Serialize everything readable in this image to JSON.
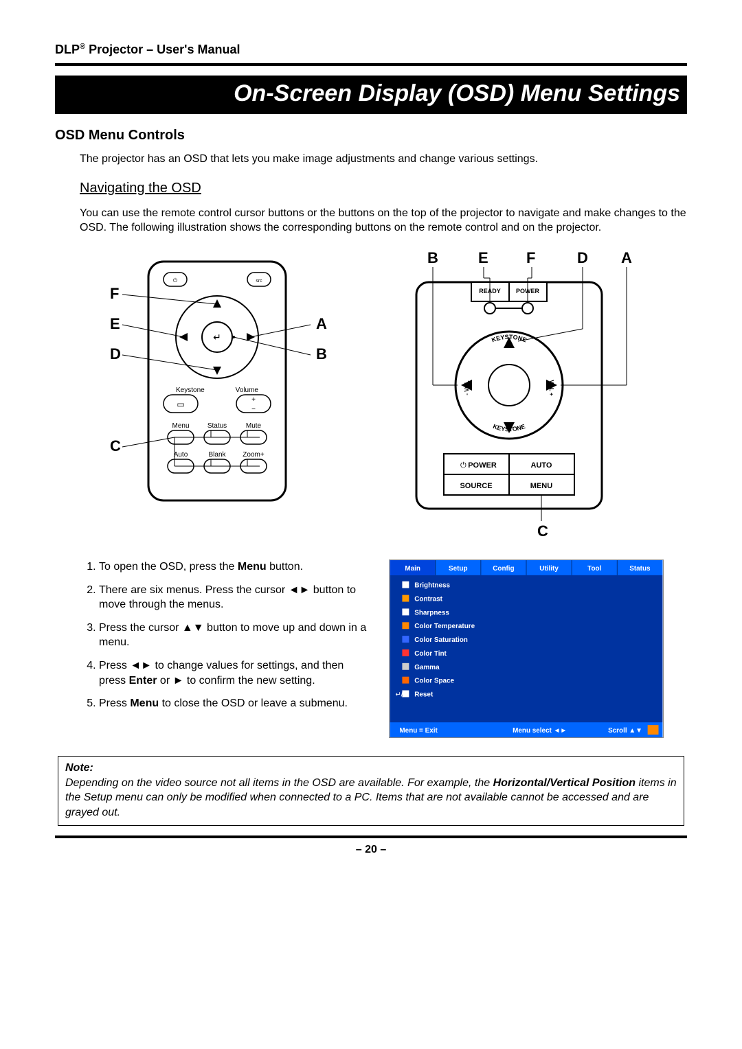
{
  "header": {
    "brand_prefix": "DLP",
    "brand_sup": "®",
    "brand_suffix": " Projector – User's Manual"
  },
  "banner": "On-Screen Display (OSD) Menu Settings",
  "section_title": "OSD Menu Controls",
  "intro": "The projector has an OSD that lets you make image adjustments and change various settings.",
  "subsection_title": "Navigating the OSD",
  "subsection_body": "You can use the remote control cursor buttons or the buttons on the top of the projector to navigate and make changes to the OSD. The following illustration shows the corresponding buttons on the remote control and on the projector.",
  "remote_labels": {
    "F": "F",
    "E": "E",
    "D": "D",
    "C": "C",
    "A": "A",
    "B": "B"
  },
  "remote_small": {
    "keystone": "Keystone",
    "volume": "Volume",
    "menu": "Menu",
    "status": "Status",
    "mute": "Mute",
    "auto": "Auto",
    "blank": "Blank",
    "zoom": "Zoom+"
  },
  "top_labels": {
    "B": "B",
    "E": "E",
    "F": "F",
    "D": "D",
    "A": "A",
    "C": "C"
  },
  "top_small": {
    "ready": "READY",
    "power_led": "POWER",
    "keystone_up": "KEYSTONE",
    "keystone_down": "KEYSTONE",
    "vol_minus": "- VOL",
    "vol_plus": "VOL +",
    "power": "POWER",
    "auto": "AUTO",
    "source": "SOURCE",
    "menu": "MENU"
  },
  "steps": {
    "s1_a": "To open the OSD, press the ",
    "s1_b": "Menu",
    "s1_c": " button.",
    "s2": "There are six menus. Press the cursor ◄► button to move through the menus.",
    "s3": "Press the cursor ▲▼ button to move up and down in a menu.",
    "s4_a": "Press ◄► to change values for settings, and then press ",
    "s4_b": "Enter",
    "s4_c": " or ► to confirm the new setting.",
    "s5_a": "Press ",
    "s5_b": "Menu",
    "s5_c": " to close the OSD or leave a submenu."
  },
  "osd": {
    "bg": "#0033a0",
    "header_bg": "#0066ff",
    "active_bg": "#0044dd",
    "text_color": "#ffffff",
    "tabs": [
      "Main",
      "Setup",
      "Config",
      "Utility",
      "Tool",
      "Status"
    ],
    "items": [
      "Brightness",
      "Contrast",
      "Sharpness",
      "Color Temperature",
      "Color Saturation",
      "Color Tint",
      "Gamma",
      "Color Space",
      "Reset"
    ],
    "icon_colors": [
      "#ffffff",
      "#ff9900",
      "#ffffff",
      "#ff8800",
      "#3366ff",
      "#ff3333",
      "#cccccc",
      "#ff6600",
      "#ffffff"
    ],
    "footer_left": "Menu = Exit",
    "footer_mid": "Menu select   ◄►",
    "footer_right": "Scroll   ▲▼"
  },
  "note": {
    "title": "Note:",
    "body_a": "Depending on the video source not all items in the OSD are available. For example, the ",
    "body_b": "Horizontal/Vertical Position",
    "body_c": " items in the Setup menu can only be modified when connected to a PC. Items that are not available cannot be accessed and are grayed out."
  },
  "page_number": "– 20 –"
}
